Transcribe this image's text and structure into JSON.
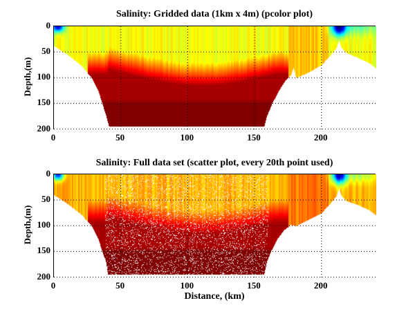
{
  "chart_data": [
    {
      "type": "heatmap",
      "title": "Salinity: Gridded data (1km x 4m) (pcolor plot)",
      "xlabel": "",
      "ylabel": "Depth,(m)",
      "xlim": [
        0,
        241
      ],
      "ylim": [
        0,
        202
      ],
      "y_reversed": true,
      "xticks": [
        "0",
        "50",
        "100",
        "150",
        "200"
      ],
      "yticks": [
        "0",
        "50",
        "100",
        "150",
        "200"
      ],
      "grid": "dotted",
      "colormap": "jet",
      "bottom_profile": [
        [
          0,
          38
        ],
        [
          10,
          55
        ],
        [
          20,
          75
        ],
        [
          28,
          100
        ],
        [
          33,
          125
        ],
        [
          36,
          150
        ],
        [
          39,
          175
        ],
        [
          41,
          195
        ],
        [
          157,
          195
        ],
        [
          159,
          175
        ],
        [
          163,
          150
        ],
        [
          168,
          125
        ],
        [
          173,
          105
        ],
        [
          177,
          95
        ],
        [
          179,
          80
        ],
        [
          181,
          100
        ],
        [
          190,
          90
        ],
        [
          200,
          75
        ],
        [
          207,
          55
        ],
        [
          211,
          42
        ],
        [
          213,
          27
        ],
        [
          215,
          42
        ],
        [
          219,
          52
        ],
        [
          228,
          62
        ],
        [
          236,
          72
        ],
        [
          241,
          82
        ]
      ],
      "features": {
        "surface_layer": "green-yellow (lower salinity) from 0 to ~80 m",
        "deep_layer": "red to dark red (high salinity) below ~100 m between 40 and 157 km",
        "fresh_plumes": "dark blue near surface at ~2 km and ~213 km"
      }
    },
    {
      "type": "scatter",
      "title": "Salinity: Full data set (scatter plot, every 20th point used)",
      "xlabel": "Distance, (km)",
      "ylabel": "Depth,(m)",
      "xlim": [
        0,
        241
      ],
      "ylim": [
        0,
        202
      ],
      "y_reversed": true,
      "xticks": [
        "0",
        "50",
        "100",
        "150",
        "200"
      ],
      "yticks": [
        "0",
        "50",
        "100",
        "150",
        "200"
      ],
      "grid": "dotted",
      "colormap": "jet",
      "bottom_profile": [
        [
          0,
          40
        ],
        [
          10,
          57
        ],
        [
          20,
          77
        ],
        [
          28,
          100
        ],
        [
          33,
          125
        ],
        [
          36,
          150
        ],
        [
          39,
          172
        ],
        [
          40,
          195
        ],
        [
          157,
          195
        ],
        [
          159,
          170
        ],
        [
          162,
          150
        ],
        [
          167,
          125
        ],
        [
          172,
          108
        ],
        [
          177,
          98
        ],
        [
          181,
          100
        ],
        [
          190,
          88
        ],
        [
          200,
          75
        ],
        [
          207,
          55
        ],
        [
          211,
          42
        ],
        [
          213,
          27
        ],
        [
          215,
          42
        ],
        [
          219,
          52
        ],
        [
          228,
          60
        ],
        [
          236,
          70
        ],
        [
          241,
          80
        ]
      ],
      "features": {
        "surface_layer": "yellow to orange from 0 to ~80 m",
        "deep_layer": "red to dark red below ~100 m between 40 and 157 km",
        "fresh_plumes": "blue near surface at ~2 km and ~213 km"
      }
    }
  ]
}
